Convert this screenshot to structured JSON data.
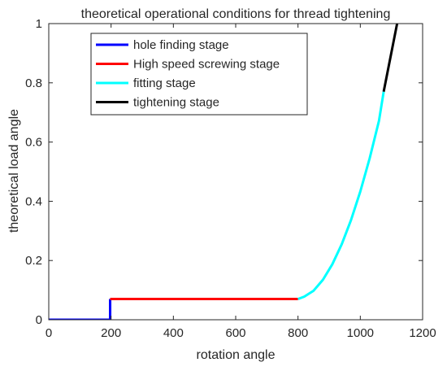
{
  "chart_data": {
    "type": "line",
    "title": "theoretical operational conditions for thread tightening",
    "xlabel": "rotation angle",
    "ylabel": "theoretical load angle",
    "xlim": [
      0,
      1200
    ],
    "ylim": [
      0,
      1
    ],
    "xticks": [
      0,
      200,
      400,
      600,
      800,
      1000,
      1200
    ],
    "yticks": [
      0,
      0.2,
      0.4,
      0.6,
      0.8,
      1
    ],
    "xtick_labels": [
      "0",
      "200",
      "400",
      "600",
      "800",
      "1000",
      "1200"
    ],
    "ytick_labels": [
      "0",
      "0.2",
      "0.4",
      "0.6",
      "0.8",
      "1"
    ],
    "grid": false,
    "legend_position": "top-left",
    "series": [
      {
        "name": "hole finding stage",
        "color": "#0000ff",
        "x": [
          0,
          197,
          197
        ],
        "y": [
          0,
          0,
          0.07
        ]
      },
      {
        "name": "High speed screwing stage",
        "color": "#ff0000",
        "x": [
          197,
          200,
          800
        ],
        "y": [
          0.07,
          0.07,
          0.07
        ]
      },
      {
        "name": "fitting stage",
        "color": "#00ffff",
        "x": [
          800,
          820,
          850,
          880,
          910,
          940,
          970,
          1000,
          1030,
          1060,
          1075
        ],
        "y": [
          0.07,
          0.078,
          0.098,
          0.135,
          0.187,
          0.254,
          0.336,
          0.433,
          0.545,
          0.672,
          0.77
        ]
      },
      {
        "name": "tightening stage",
        "color": "#000000",
        "x": [
          1075,
          1090,
          1105,
          1120
        ],
        "y": [
          0.77,
          0.85,
          0.93,
          1.01
        ]
      }
    ]
  }
}
